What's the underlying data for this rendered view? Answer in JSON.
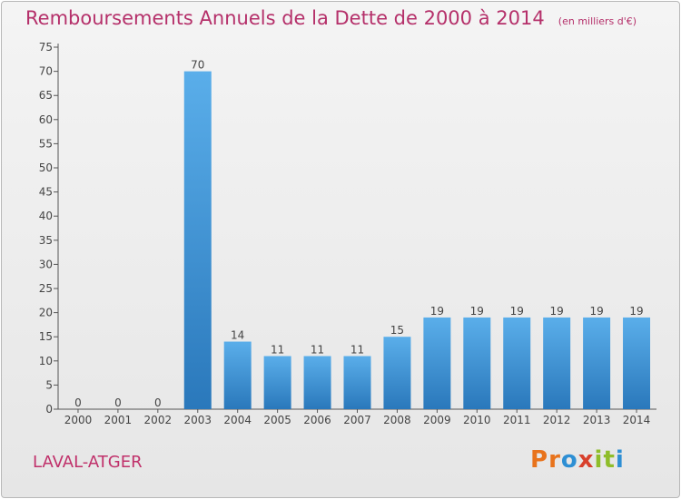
{
  "header": {
    "title": "Remboursements Annuels de la Dette de 2000 à 2014",
    "unit": "(en milliers d'€)"
  },
  "footer": {
    "commune": "LAVAL-ATGER",
    "brand": "Proxiti"
  },
  "colors": {
    "title": "#b5306a",
    "bar_light": "#5aaeea",
    "bar_dark": "#2a78bb",
    "logo": [
      "#e8731c",
      "#e8731c",
      "#2e8fd4",
      "#d8402c",
      "#8fbd2a",
      "#8fbd2a",
      "#2e8fd4"
    ]
  },
  "chart_data": {
    "type": "bar",
    "categories": [
      "2000",
      "2001",
      "2002",
      "2003",
      "2004",
      "2005",
      "2006",
      "2007",
      "2008",
      "2009",
      "2010",
      "2011",
      "2012",
      "2013",
      "2014"
    ],
    "values": [
      0,
      0,
      0,
      70,
      14,
      11,
      11,
      11,
      15,
      19,
      19,
      19,
      19,
      19,
      19
    ],
    "data_labels": [
      "0",
      "0",
      "0",
      "70",
      "14",
      "11",
      "11",
      "11",
      "15",
      "19",
      "19",
      "19",
      "19",
      "19",
      "19"
    ],
    "ylim": [
      0,
      75
    ],
    "yticks": [
      0,
      5,
      10,
      15,
      20,
      25,
      30,
      35,
      40,
      45,
      50,
      55,
      60,
      65,
      70,
      75
    ],
    "grid": false,
    "legend": "none"
  }
}
